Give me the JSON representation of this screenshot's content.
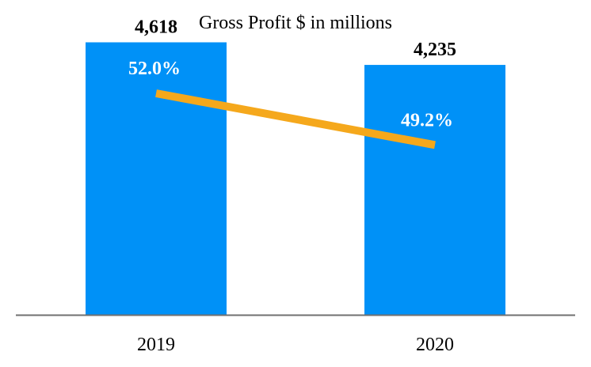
{
  "chart_data": {
    "type": "bar",
    "title": "Gross Profit $ in millions",
    "categories": [
      "2019",
      "2020"
    ],
    "series": [
      {
        "name": "Gross Profit",
        "kind": "bar",
        "values": [
          4618,
          4235
        ],
        "labels": [
          "4,618",
          "4,235"
        ],
        "color": "#0091F7"
      },
      {
        "name": "Gross Margin",
        "kind": "line",
        "values": [
          52.0,
          49.2
        ],
        "labels": [
          "52.0%",
          "49.2%"
        ],
        "color": "#F5A81C"
      }
    ],
    "bar_axis": {
      "ylim": [
        0,
        5000
      ]
    },
    "line_axis": {
      "ylim": [
        40,
        55
      ]
    },
    "xlabel": "",
    "ylabel": "",
    "grid": false,
    "legend": "none",
    "axis_color": "#707070"
  }
}
